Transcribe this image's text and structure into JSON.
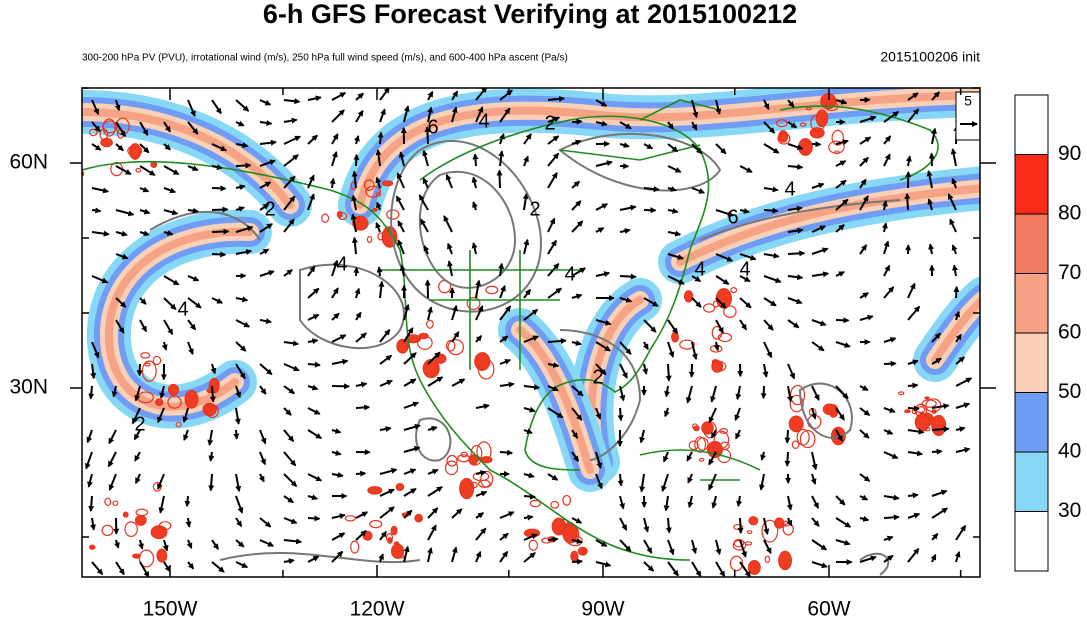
{
  "title": "6-h GFS Forecast Verifying at 2015100212",
  "subtitle_left": "300-200 hPa PV (PVU), irrotational wind (m/s), 250 hPa full wind speed (m/s), and 600-400 hPa ascent (Pa/s)",
  "subtitle_right": "2015100206 init",
  "map": {
    "x_labels": [
      "150W",
      "120W",
      "90W",
      "60W"
    ],
    "y_labels": [
      "60N",
      "30N"
    ],
    "reference_vector": "5",
    "contour_labels": [
      6,
      4,
      2,
      2,
      4,
      4,
      2,
      4,
      4,
      6,
      4,
      4,
      2,
      2
    ]
  },
  "colorbar": {
    "levels": [
      30,
      40,
      50,
      60,
      70,
      80,
      90
    ],
    "colors": [
      "#ffffff",
      "#87d8f6",
      "#6f9df6",
      "#fad0b6",
      "#f5a285",
      "#f17a5f",
      "#fa2b18",
      "#ffffff"
    ]
  }
}
